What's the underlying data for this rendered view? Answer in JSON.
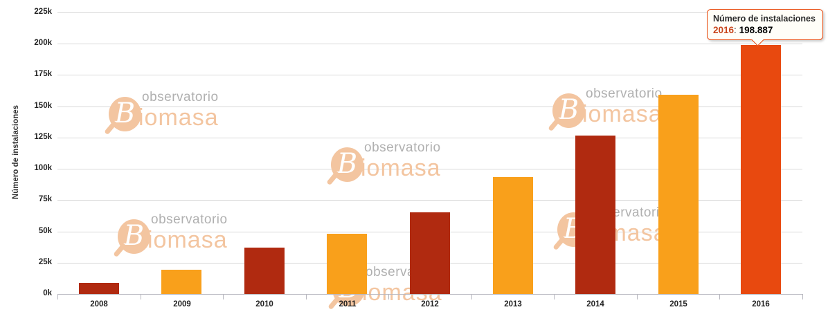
{
  "chart_data": {
    "type": "bar",
    "title": "",
    "xlabel": "",
    "ylabel": "Número de instalaciones",
    "categories": [
      "2008",
      "2009",
      "2010",
      "2011",
      "2012",
      "2013",
      "2014",
      "2015",
      "2016"
    ],
    "values": [
      9000,
      19400,
      37200,
      48200,
      65000,
      93700,
      126400,
      159000,
      198887
    ],
    "bar_colors": [
      "#b02a10",
      "#f9a01b",
      "#b02a10",
      "#f9a01b",
      "#b02a10",
      "#f9a01b",
      "#b02a10",
      "#f9a01b",
      "#e8490f"
    ],
    "ylim": [
      0,
      225000
    ],
    "ytick_step": 25000,
    "ytick_labels": [
      "0k",
      "25k",
      "50k",
      "75k",
      "100k",
      "125k",
      "150k",
      "175k",
      "200k",
      "225k"
    ],
    "grid": true,
    "legend": "none",
    "highlighted_category": "2016"
  },
  "tooltip": {
    "title": "Número de instalaciones",
    "category": "2016",
    "separator": ": ",
    "value": "198.887"
  },
  "watermark": {
    "word_top": "observatorio",
    "initial": "B",
    "word_bottom_rest": "iomasa"
  },
  "colors": {
    "bar_dark_red": "#b02a10",
    "bar_orange": "#f9a01b",
    "bar_highlight": "#e8490f",
    "tooltip_border": "#e8490f",
    "tooltip_category_text": "#c8441a",
    "watermark_peach": "#f3c5a0",
    "watermark_gray": "#b0b0b0",
    "gridline": "#d8d8d8",
    "axis_line": "#b6b6be"
  }
}
